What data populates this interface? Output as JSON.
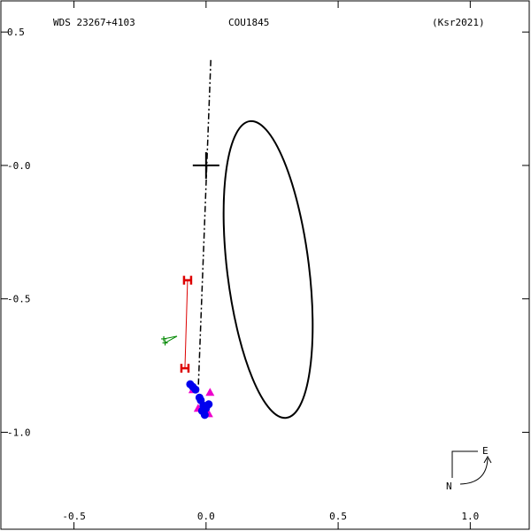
{
  "header": {
    "left": "WDS 23267+4103",
    "center": "COU1845",
    "right": "(Ksr2021)"
  },
  "compass": {
    "east_label": "E",
    "north_label": "N"
  },
  "chart_data": {
    "type": "scatter",
    "title": "COU1845",
    "xlim": [
      -0.78,
      1.23
    ],
    "ylim": [
      -1.37,
      0.62
    ],
    "x_ticks": [
      {
        "value": -0.5,
        "label": "-0.5"
      },
      {
        "value": 0.0,
        "label": "0.0"
      },
      {
        "value": 0.5,
        "label": "0.5"
      },
      {
        "value": 1.0,
        "label": "1.0"
      }
    ],
    "y_ticks": [
      {
        "value": 0.5,
        "label": "0.5"
      },
      {
        "value": 0.0,
        "label": "-0.0"
      },
      {
        "value": -0.5,
        "label": "-0.5"
      },
      {
        "value": -1.0,
        "label": "-1.0"
      }
    ],
    "primary": {
      "x": 0.0,
      "y": 0.0
    },
    "orbit_ellipse": {
      "cx": 0.235,
      "cy": -0.39,
      "rx": 0.155,
      "ry": 0.56,
      "rotation_deg": -7
    },
    "line_of_nodes": [
      [
        0.018,
        0.395
      ],
      [
        -0.03,
        -0.85
      ]
    ],
    "colors": {
      "orbit": "#000000",
      "hipparcos": "#dd0000",
      "micrometer": "#008800",
      "speckle": "#0000ee",
      "other": "#ee00cc"
    },
    "hipparcos_points": [
      {
        "x": -0.07,
        "y": -0.43
      },
      {
        "x": -0.08,
        "y": -0.76
      }
    ],
    "micrometer_points": [
      {
        "x": -0.16,
        "y": -0.65
      },
      {
        "x": -0.155,
        "y": -0.665
      }
    ],
    "micrometer_anchor": {
      "x": -0.11,
      "y": -0.64
    },
    "speckle_points": [
      {
        "x": -0.06,
        "y": -0.82
      },
      {
        "x": -0.05,
        "y": -0.83
      },
      {
        "x": -0.04,
        "y": -0.84
      },
      {
        "x": -0.025,
        "y": -0.87
      },
      {
        "x": -0.02,
        "y": -0.88
      },
      {
        "x": -0.01,
        "y": -0.9
      },
      {
        "x": -0.015,
        "y": -0.92
      },
      {
        "x": 0.0,
        "y": -0.91
      },
      {
        "x": 0.01,
        "y": -0.895
      },
      {
        "x": -0.005,
        "y": -0.935
      }
    ],
    "other_points": [
      {
        "x": -0.05,
        "y": -0.84
      },
      {
        "x": 0.015,
        "y": -0.85
      },
      {
        "x": -0.03,
        "y": -0.91
      },
      {
        "x": 0.01,
        "y": -0.93
      }
    ]
  }
}
